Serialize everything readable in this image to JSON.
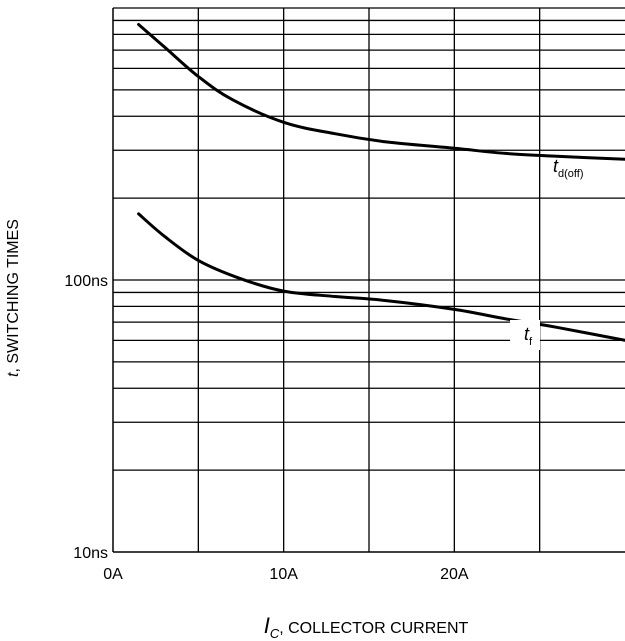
{
  "chart_data": {
    "type": "line",
    "title": "",
    "xlabel": {
      "symbol": "I",
      "subscript": "C",
      "text": ", COLLECTOR CURRENT"
    },
    "ylabel": {
      "symbol": "t",
      "text": ", SWITCHING TIMES"
    },
    "x_scale": "linear",
    "y_scale": "log",
    "xlim": [
      0,
      30
    ],
    "ylim": [
      10,
      1000
    ],
    "x_ticks": [
      {
        "value": 0,
        "label": "0A"
      },
      {
        "value": 10,
        "label": "10A"
      },
      {
        "value": 20,
        "label": "20A"
      }
    ],
    "y_ticks": [
      {
        "value": 10,
        "label": "10ns"
      },
      {
        "value": 100,
        "label": "100ns"
      }
    ],
    "x_grid": [
      5,
      10,
      15,
      20,
      25
    ],
    "y_grid": [
      20,
      30,
      40,
      50,
      60,
      70,
      80,
      90,
      100,
      200,
      300,
      400,
      500,
      600,
      700,
      800,
      900
    ],
    "grid": true,
    "series": [
      {
        "name": {
          "symbol": "t",
          "subscript": "d(off)"
        },
        "x": [
          1.5,
          3,
          5,
          7,
          10,
          13,
          16,
          20,
          23,
          26,
          30
        ],
        "y": [
          870,
          720,
          560,
          460,
          380,
          345,
          322,
          305,
          292,
          285,
          278
        ]
      },
      {
        "name": {
          "symbol": "t",
          "subscript": "f"
        },
        "x": [
          1.5,
          3,
          5,
          7.5,
          10,
          13,
          16,
          20,
          23,
          26,
          30
        ],
        "y": [
          175,
          145,
          118,
          101,
          91,
          87,
          84,
          78,
          72,
          67,
          60
        ]
      }
    ]
  }
}
